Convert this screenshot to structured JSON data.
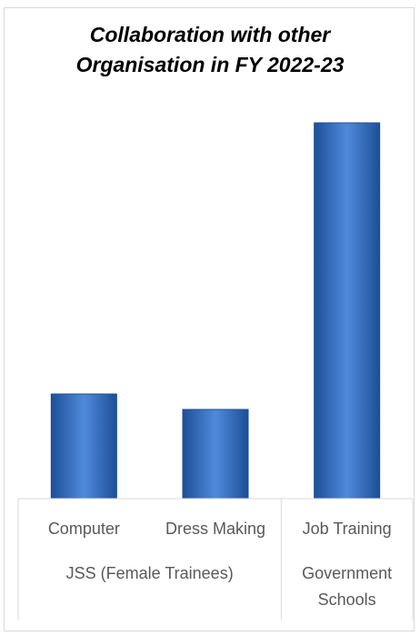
{
  "chart_data": {
    "type": "bar",
    "title_lines": [
      "Collaboration with other",
      "Organisation in FY 2022-23"
    ],
    "categories": [
      "Computer",
      "Dress Making",
      "Job Training"
    ],
    "groups": [
      {
        "label": "JSS (Female Trainees)",
        "categories": [
          "Computer",
          "Dress Making"
        ]
      },
      {
        "label": "Government Schools",
        "categories": [
          "Job Training"
        ]
      }
    ],
    "series": [
      {
        "values": [
          115,
          98,
          413
        ]
      }
    ],
    "bar_color": "#2f6bc0",
    "bar_color_light": "#4f8ad9",
    "bar_color_dark": "#1d4f98",
    "ylim": [
      0,
      413
    ],
    "grid": false,
    "legend": "none"
  }
}
